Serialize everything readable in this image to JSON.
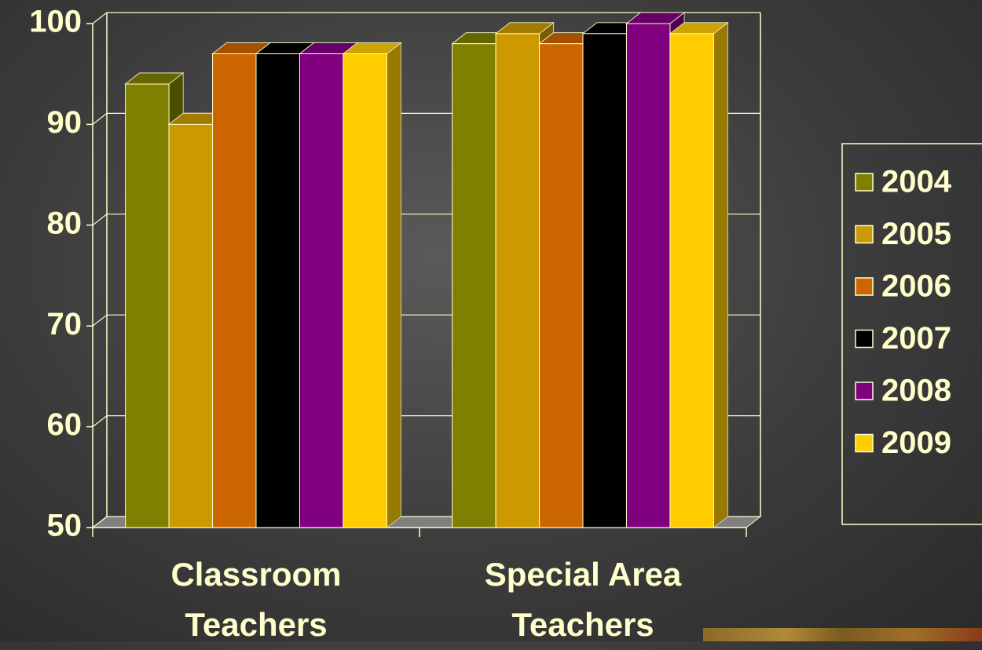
{
  "chart_data": {
    "type": "bar3d",
    "categories": [
      "Classroom Teachers",
      "Special Area Teachers"
    ],
    "series": [
      {
        "name": "2004",
        "color": "#808000",
        "values": [
          94,
          98
        ]
      },
      {
        "name": "2005",
        "color": "#cc9900",
        "values": [
          90,
          99
        ]
      },
      {
        "name": "2006",
        "color": "#cc6600",
        "values": [
          97,
          98
        ]
      },
      {
        "name": "2007",
        "color": "#000000",
        "values": [
          97,
          99
        ]
      },
      {
        "name": "2008",
        "color": "#800080",
        "values": [
          97,
          100
        ]
      },
      {
        "name": "2009",
        "color": "#ffcc00",
        "values": [
          97,
          99
        ]
      }
    ],
    "ylim": [
      50,
      100
    ],
    "yticks": [
      50,
      60,
      70,
      80,
      90,
      100
    ],
    "grid": true,
    "legend": "right"
  }
}
